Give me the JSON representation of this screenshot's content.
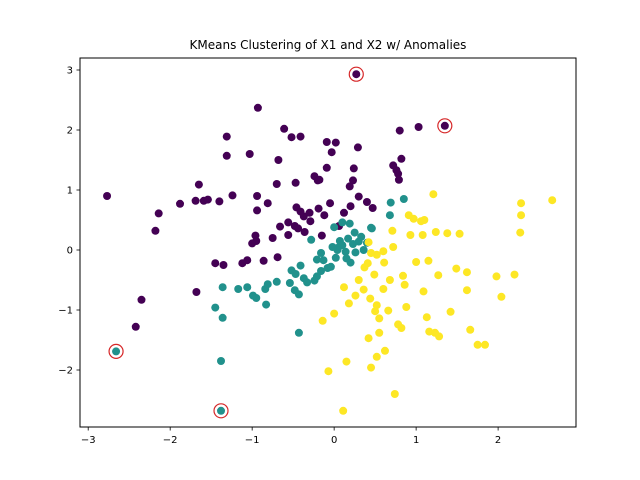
{
  "chart_data": {
    "type": "scatter",
    "title": "KMeans Clustering of X1 and X2 w/ Anomalies",
    "xlabel": "",
    "ylabel": "",
    "xlim": [
      -3.1,
      2.95
    ],
    "ylim": [
      -2.95,
      3.2
    ],
    "xticks": [
      -3,
      -2,
      -1,
      0,
      1,
      2
    ],
    "yticks": [
      -2,
      -1,
      0,
      1,
      2,
      3
    ],
    "grid": false,
    "legend": "none",
    "cluster_colors": [
      "#440154",
      "#21918c",
      "#fde725"
    ],
    "anomaly_ring_color": "#d62728",
    "points": [
      [
        -2.77,
        0.9,
        0
      ],
      [
        -2.14,
        0.61,
        0
      ],
      [
        -2.18,
        0.32,
        0
      ],
      [
        -1.88,
        0.77,
        0
      ],
      [
        -1.69,
        0.82,
        0
      ],
      [
        -1.65,
        1.09,
        0
      ],
      [
        -1.59,
        0.82,
        0
      ],
      [
        -1.54,
        0.84,
        0
      ],
      [
        -1.4,
        0.81,
        0
      ],
      [
        -1.31,
        1.57,
        0
      ],
      [
        -1.31,
        1.89,
        0
      ],
      [
        -1.24,
        0.91,
        0
      ],
      [
        -1.03,
        1.6,
        0
      ],
      [
        -0.93,
        2.37,
        0
      ],
      [
        -0.94,
        0.66,
        0
      ],
      [
        -0.94,
        0.9,
        0
      ],
      [
        -0.81,
        0.78,
        0
      ],
      [
        -0.68,
        1.5,
        0
      ],
      [
        -0.61,
        2.02,
        0
      ],
      [
        -0.52,
        1.88,
        0
      ],
      [
        -0.41,
        1.89,
        0
      ],
      [
        -0.56,
        0.46,
        0
      ],
      [
        -0.48,
        0.4,
        0
      ],
      [
        -0.46,
        0.71,
        0
      ],
      [
        -0.41,
        0.64,
        0
      ],
      [
        -0.37,
        0.56,
        0
      ],
      [
        -0.3,
        0.62,
        0
      ],
      [
        -0.24,
        1.23,
        0
      ],
      [
        -0.2,
        1.16,
        0
      ],
      [
        -0.19,
        0.69,
        0
      ],
      [
        -0.12,
        0.58,
        0
      ],
      [
        -0.09,
        1.8,
        0
      ],
      [
        -0.03,
        1.63,
        0
      ],
      [
        0.02,
        1.79,
        0
      ],
      [
        -0.09,
        1.37,
        0
      ],
      [
        -0.05,
        0.78,
        0
      ],
      [
        0.12,
        0.62,
        0
      ],
      [
        0.19,
        1.06,
        0
      ],
      [
        0.24,
        1.36,
        0
      ],
      [
        0.29,
        1.71,
        0
      ],
      [
        0.23,
        1.16,
        0
      ],
      [
        0.3,
        0.89,
        0
      ],
      [
        0.4,
        0.8,
        0
      ],
      [
        0.72,
        1.41,
        0
      ],
      [
        0.78,
        1.27,
        0
      ],
      [
        0.76,
        1.33,
        0
      ],
      [
        0.82,
        1.52,
        0
      ],
      [
        0.79,
        1.17,
        0
      ],
      [
        0.8,
        1.99,
        0
      ],
      [
        1.03,
        2.05,
        0
      ],
      [
        -0.96,
        0.24,
        0
      ],
      [
        -0.95,
        0.15,
        0
      ],
      [
        -0.75,
        0.2,
        0
      ],
      [
        -0.66,
        0.39,
        0
      ],
      [
        -0.86,
        -0.18,
        0
      ],
      [
        -1.06,
        -0.17,
        0
      ],
      [
        -1.0,
        0.11,
        0
      ],
      [
        -1.12,
        -0.22,
        0
      ],
      [
        -0.69,
        -0.12,
        0
      ],
      [
        -0.56,
        0.25,
        0
      ],
      [
        -0.44,
        0.36,
        0
      ],
      [
        -0.36,
        0.3,
        0
      ],
      [
        -0.29,
        0.48,
        0
      ],
      [
        -0.15,
        0.24,
        0
      ],
      [
        0.06,
        0.4,
        0
      ],
      [
        -0.7,
        1.1,
        0
      ],
      [
        -1.45,
        -0.22,
        0
      ],
      [
        -1.35,
        -0.25,
        0
      ],
      [
        -1.68,
        -0.7,
        0
      ],
      [
        -2.35,
        -0.83,
        0
      ],
      [
        -2.42,
        -1.28,
        0
      ],
      [
        -0.47,
        1.12,
        0
      ],
      [
        -0.18,
        1.17,
        0
      ],
      [
        0.2,
        0.73,
        0
      ],
      [
        0.47,
        0.7,
        0
      ],
      [
        0.27,
        2.93,
        0
      ],
      [
        1.35,
        2.07,
        0
      ],
      [
        -1.36,
        -0.62,
        1
      ],
      [
        -1.17,
        -0.65,
        1
      ],
      [
        -1.06,
        -0.62,
        1
      ],
      [
        -0.95,
        -0.8,
        1
      ],
      [
        -0.84,
        -0.65,
        1
      ],
      [
        -0.81,
        -0.57,
        1
      ],
      [
        -0.7,
        -0.53,
        1
      ],
      [
        -0.54,
        -0.55,
        1
      ],
      [
        -0.48,
        -0.67,
        1
      ],
      [
        -0.52,
        -0.34,
        1
      ],
      [
        -0.47,
        -0.4,
        1
      ],
      [
        -0.41,
        -0.26,
        1
      ],
      [
        -0.37,
        -0.47,
        1
      ],
      [
        -0.33,
        -0.54,
        1
      ],
      [
        -0.24,
        -0.51,
        1
      ],
      [
        -0.21,
        -0.44,
        1
      ],
      [
        -0.21,
        -0.16,
        1
      ],
      [
        -0.16,
        -0.35,
        1
      ],
      [
        -0.13,
        -0.17,
        1
      ],
      [
        -0.08,
        -0.3,
        1
      ],
      [
        -0.04,
        -0.28,
        1
      ],
      [
        0.02,
        -0.13,
        1
      ],
      [
        0.05,
        0.04,
        1
      ],
      [
        0.07,
        0.15,
        1
      ],
      [
        0.1,
        0.08,
        1
      ],
      [
        0.14,
        -0.03,
        1
      ],
      [
        0.17,
        0.19,
        1
      ],
      [
        0.2,
        -0.21,
        1
      ],
      [
        0.23,
        0.1,
        1
      ],
      [
        0.26,
        -0.04,
        1
      ],
      [
        0.3,
        0.14,
        1
      ],
      [
        0.36,
        0.0,
        1
      ],
      [
        0.4,
        0.12,
        1
      ],
      [
        0.46,
        0.36,
        1
      ],
      [
        0.1,
        0.46,
        1
      ],
      [
        0.19,
        0.44,
        1
      ],
      [
        -0.28,
        0.17,
        1
      ],
      [
        -0.16,
        -0.05,
        1
      ],
      [
        -0.43,
        -0.74,
        1
      ],
      [
        -0.43,
        -1.38,
        1
      ],
      [
        -1.36,
        -1.13,
        1
      ],
      [
        -1.45,
        -0.96,
        1
      ],
      [
        -1.38,
        -1.85,
        1
      ],
      [
        -0.83,
        -0.91,
        1
      ],
      [
        -0.99,
        -0.76,
        1
      ],
      [
        0.68,
        0.58,
        1
      ],
      [
        0.85,
        0.85,
        1
      ],
      [
        0.69,
        0.79,
        1
      ],
      [
        0.45,
        0.37,
        1
      ],
      [
        0.0,
        0.38,
        1
      ],
      [
        0.25,
        0.29,
        1
      ],
      [
        0.33,
        0.22,
        1
      ],
      [
        0.04,
        0.0,
        1
      ],
      [
        0.15,
        -0.14,
        1
      ],
      [
        -0.02,
        0.05,
        1
      ],
      [
        -2.66,
        -1.69,
        1
      ],
      [
        -1.38,
        -2.68,
        1
      ],
      [
        0.42,
        0.13,
        2
      ],
      [
        0.52,
        -0.08,
        2
      ],
      [
        0.6,
        -0.02,
        2
      ],
      [
        0.61,
        -0.21,
        2
      ],
      [
        0.71,
        0.32,
        2
      ],
      [
        0.72,
        0.05,
        2
      ],
      [
        0.84,
        -0.43,
        2
      ],
      [
        0.86,
        -0.58,
        2
      ],
      [
        0.91,
        0.58,
        2
      ],
      [
        0.97,
        0.52,
        2
      ],
      [
        1.0,
        -0.2,
        2
      ],
      [
        1.06,
        0.48,
        2
      ],
      [
        1.08,
        0.25,
        2
      ],
      [
        1.1,
        0.5,
        2
      ],
      [
        1.09,
        -0.69,
        2
      ],
      [
        1.15,
        -0.18,
        2
      ],
      [
        1.21,
        0.93,
        2
      ],
      [
        1.24,
        0.3,
        2
      ],
      [
        1.27,
        -0.42,
        2
      ],
      [
        1.38,
        0.28,
        2
      ],
      [
        1.53,
        0.27,
        2
      ],
      [
        1.49,
        -0.31,
        2
      ],
      [
        1.62,
        -0.37,
        2
      ],
      [
        1.62,
        -0.67,
        2
      ],
      [
        1.66,
        -1.33,
        2
      ],
      [
        1.75,
        -1.58,
        2
      ],
      [
        1.98,
        -0.44,
        2
      ],
      [
        2.04,
        -0.78,
        2
      ],
      [
        2.2,
        -0.41,
        2
      ],
      [
        2.28,
        0.78,
        2
      ],
      [
        2.28,
        0.58,
        2
      ],
      [
        2.27,
        0.29,
        2
      ],
      [
        2.66,
        0.83,
        2
      ],
      [
        0.12,
        -0.62,
        2
      ],
      [
        0.18,
        -0.89,
        2
      ],
      [
        0.26,
        -0.76,
        2
      ],
      [
        0.36,
        -0.66,
        2
      ],
      [
        0.44,
        -0.81,
        2
      ],
      [
        0.52,
        -0.92,
        2
      ],
      [
        0.55,
        -1.14,
        2
      ],
      [
        0.5,
        -1.02,
        2
      ],
      [
        0.42,
        -1.47,
        2
      ],
      [
        0.52,
        -1.78,
        2
      ],
      [
        0.62,
        -1.68,
        2
      ],
      [
        0.55,
        -1.38,
        2
      ],
      [
        0.66,
        -1.01,
        2
      ],
      [
        0.78,
        -1.24,
        2
      ],
      [
        0.82,
        -1.3,
        2
      ],
      [
        0.88,
        -0.95,
        2
      ],
      [
        1.13,
        -1.12,
        2
      ],
      [
        1.16,
        -1.36,
        2
      ],
      [
        1.28,
        -1.44,
        2
      ],
      [
        1.23,
        -1.38,
        2
      ],
      [
        0.74,
        -2.4,
        2
      ],
      [
        0.45,
        -1.96,
        2
      ],
      [
        0.15,
        -1.86,
        2
      ],
      [
        0.11,
        -2.68,
        2
      ],
      [
        -0.07,
        -2.02,
        2
      ],
      [
        0.0,
        -1.06,
        2
      ],
      [
        -0.14,
        -1.18,
        2
      ],
      [
        0.41,
        -0.22,
        2
      ],
      [
        0.45,
        -0.05,
        2
      ],
      [
        0.49,
        -0.41,
        2
      ],
      [
        0.37,
        -0.29,
        2
      ],
      [
        0.68,
        -0.5,
        2
      ],
      [
        0.93,
        0.25,
        2
      ],
      [
        1.42,
        -1.03,
        2
      ],
      [
        1.84,
        -1.58,
        2
      ],
      [
        0.3,
        -0.5,
        2
      ],
      [
        0.6,
        -0.65,
        2
      ]
    ],
    "anomalies": [
      [
        0.27,
        2.93
      ],
      [
        1.35,
        2.07
      ],
      [
        -2.66,
        -1.69
      ],
      [
        -1.38,
        -2.68
      ]
    ]
  }
}
